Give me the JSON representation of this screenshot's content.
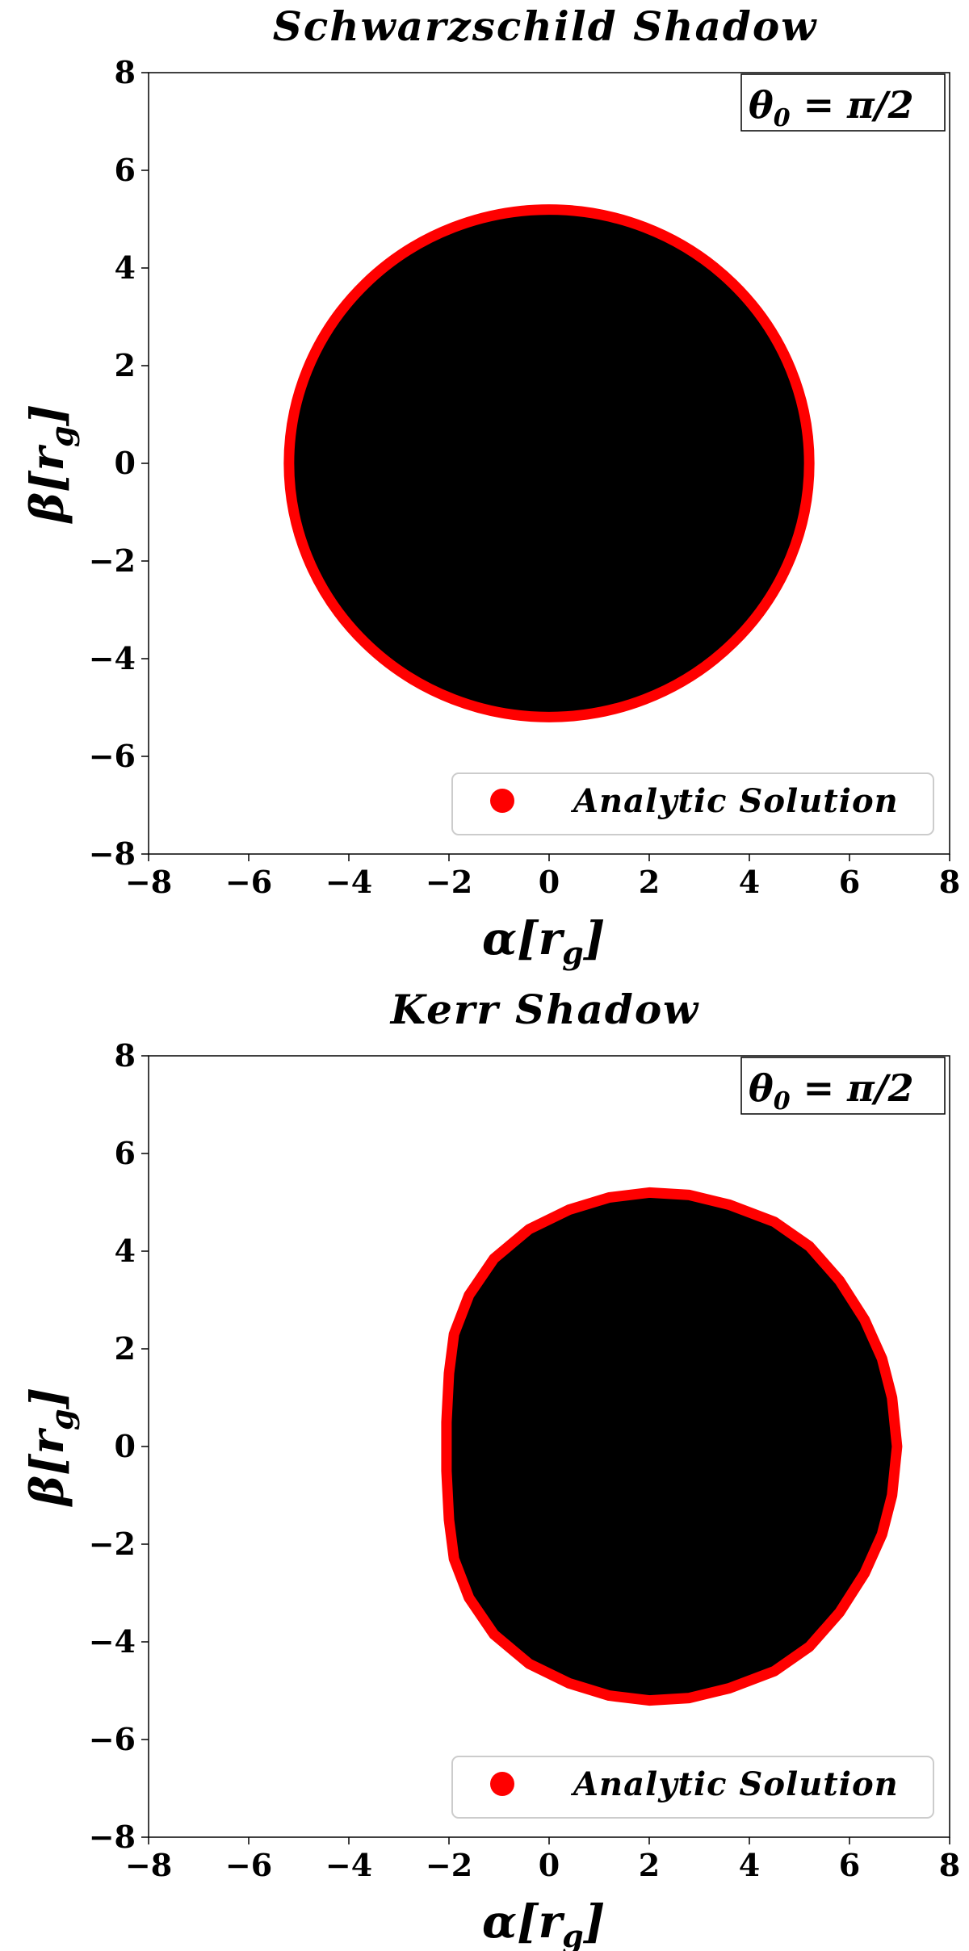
{
  "chart_data": [
    {
      "type": "area",
      "title": "Schwarzschild Shadow",
      "xlabel": "α[r_g]",
      "ylabel": "β[r_g]",
      "xlim": [
        -8,
        8
      ],
      "ylim": [
        -8,
        8
      ],
      "xticks": [
        "−8",
        "−6",
        "−4",
        "−2",
        "0",
        "2",
        "4",
        "6",
        "8"
      ],
      "yticks": [
        "8",
        "6",
        "4",
        "2",
        "0",
        "−2",
        "−4",
        "−6",
        "−8"
      ],
      "xtick_values": [
        -8,
        -6,
        -4,
        -2,
        0,
        2,
        4,
        6,
        8
      ],
      "ytick_values": [
        8,
        6,
        4,
        2,
        0,
        -2,
        -4,
        -6,
        -8
      ],
      "annotation": {
        "symbol": "θ",
        "subscript": "0",
        "text": " = π/2"
      },
      "legend": {
        "label": "Analytic Solution",
        "color": "#ff0000",
        "position": "lower-right"
      },
      "grid": false,
      "shadow": {
        "fill": "#000000",
        "outline_color": "#ff0000",
        "series": [
          {
            "name": "Analytic Solution",
            "shape": "circle",
            "center": [
              0,
              0
            ],
            "radius": 5.196
          }
        ]
      }
    },
    {
      "type": "area",
      "title": "Kerr Shadow",
      "xlabel": "α[r_g]",
      "ylabel": "β[r_g]",
      "xlim": [
        -8,
        8
      ],
      "ylim": [
        -8,
        8
      ],
      "xticks": [
        "−8",
        "−6",
        "−4",
        "−2",
        "0",
        "2",
        "4",
        "6",
        "8"
      ],
      "yticks": [
        "8",
        "6",
        "4",
        "2",
        "0",
        "−2",
        "−4",
        "−6",
        "−8"
      ],
      "xtick_values": [
        -8,
        -6,
        -4,
        -2,
        0,
        2,
        4,
        6,
        8
      ],
      "ytick_values": [
        8,
        6,
        4,
        2,
        0,
        -2,
        -4,
        -6,
        -8
      ],
      "annotation": {
        "symbol": "θ",
        "subscript": "0",
        "text": " = π/2"
      },
      "legend": {
        "label": "Analytic Solution",
        "color": "#ff0000",
        "position": "lower-right"
      },
      "grid": false,
      "shadow": {
        "fill": "#000000",
        "outline_color": "#ff0000",
        "series": [
          {
            "name": "Analytic Solution",
            "shape": "polygon",
            "points": [
              [
                6.95,
                0
              ],
              [
                6.85,
                1.0
              ],
              [
                6.65,
                1.8
              ],
              [
                6.3,
                2.6
              ],
              [
                5.8,
                3.4
              ],
              [
                5.2,
                4.1
              ],
              [
                4.5,
                4.6
              ],
              [
                3.6,
                4.95
              ],
              [
                2.8,
                5.15
              ],
              [
                2.0,
                5.2
              ],
              [
                1.2,
                5.1
              ],
              [
                0.4,
                4.85
              ],
              [
                -0.4,
                4.45
              ],
              [
                -1.1,
                3.85
              ],
              [
                -1.6,
                3.1
              ],
              [
                -1.9,
                2.3
              ],
              [
                -2.0,
                1.5
              ],
              [
                -2.05,
                0.5
              ],
              [
                -2.05,
                0
              ],
              [
                -2.05,
                -0.5
              ],
              [
                -2.0,
                -1.5
              ],
              [
                -1.9,
                -2.3
              ],
              [
                -1.6,
                -3.1
              ],
              [
                -1.1,
                -3.85
              ],
              [
                -0.4,
                -4.45
              ],
              [
                0.4,
                -4.85
              ],
              [
                1.2,
                -5.1
              ],
              [
                2.0,
                -5.2
              ],
              [
                2.8,
                -5.15
              ],
              [
                3.6,
                -4.95
              ],
              [
                4.5,
                -4.6
              ],
              [
                5.2,
                -4.1
              ],
              [
                5.8,
                -3.4
              ],
              [
                6.3,
                -2.6
              ],
              [
                6.65,
                -1.8
              ],
              [
                6.85,
                -1.0
              ]
            ]
          }
        ]
      }
    }
  ]
}
